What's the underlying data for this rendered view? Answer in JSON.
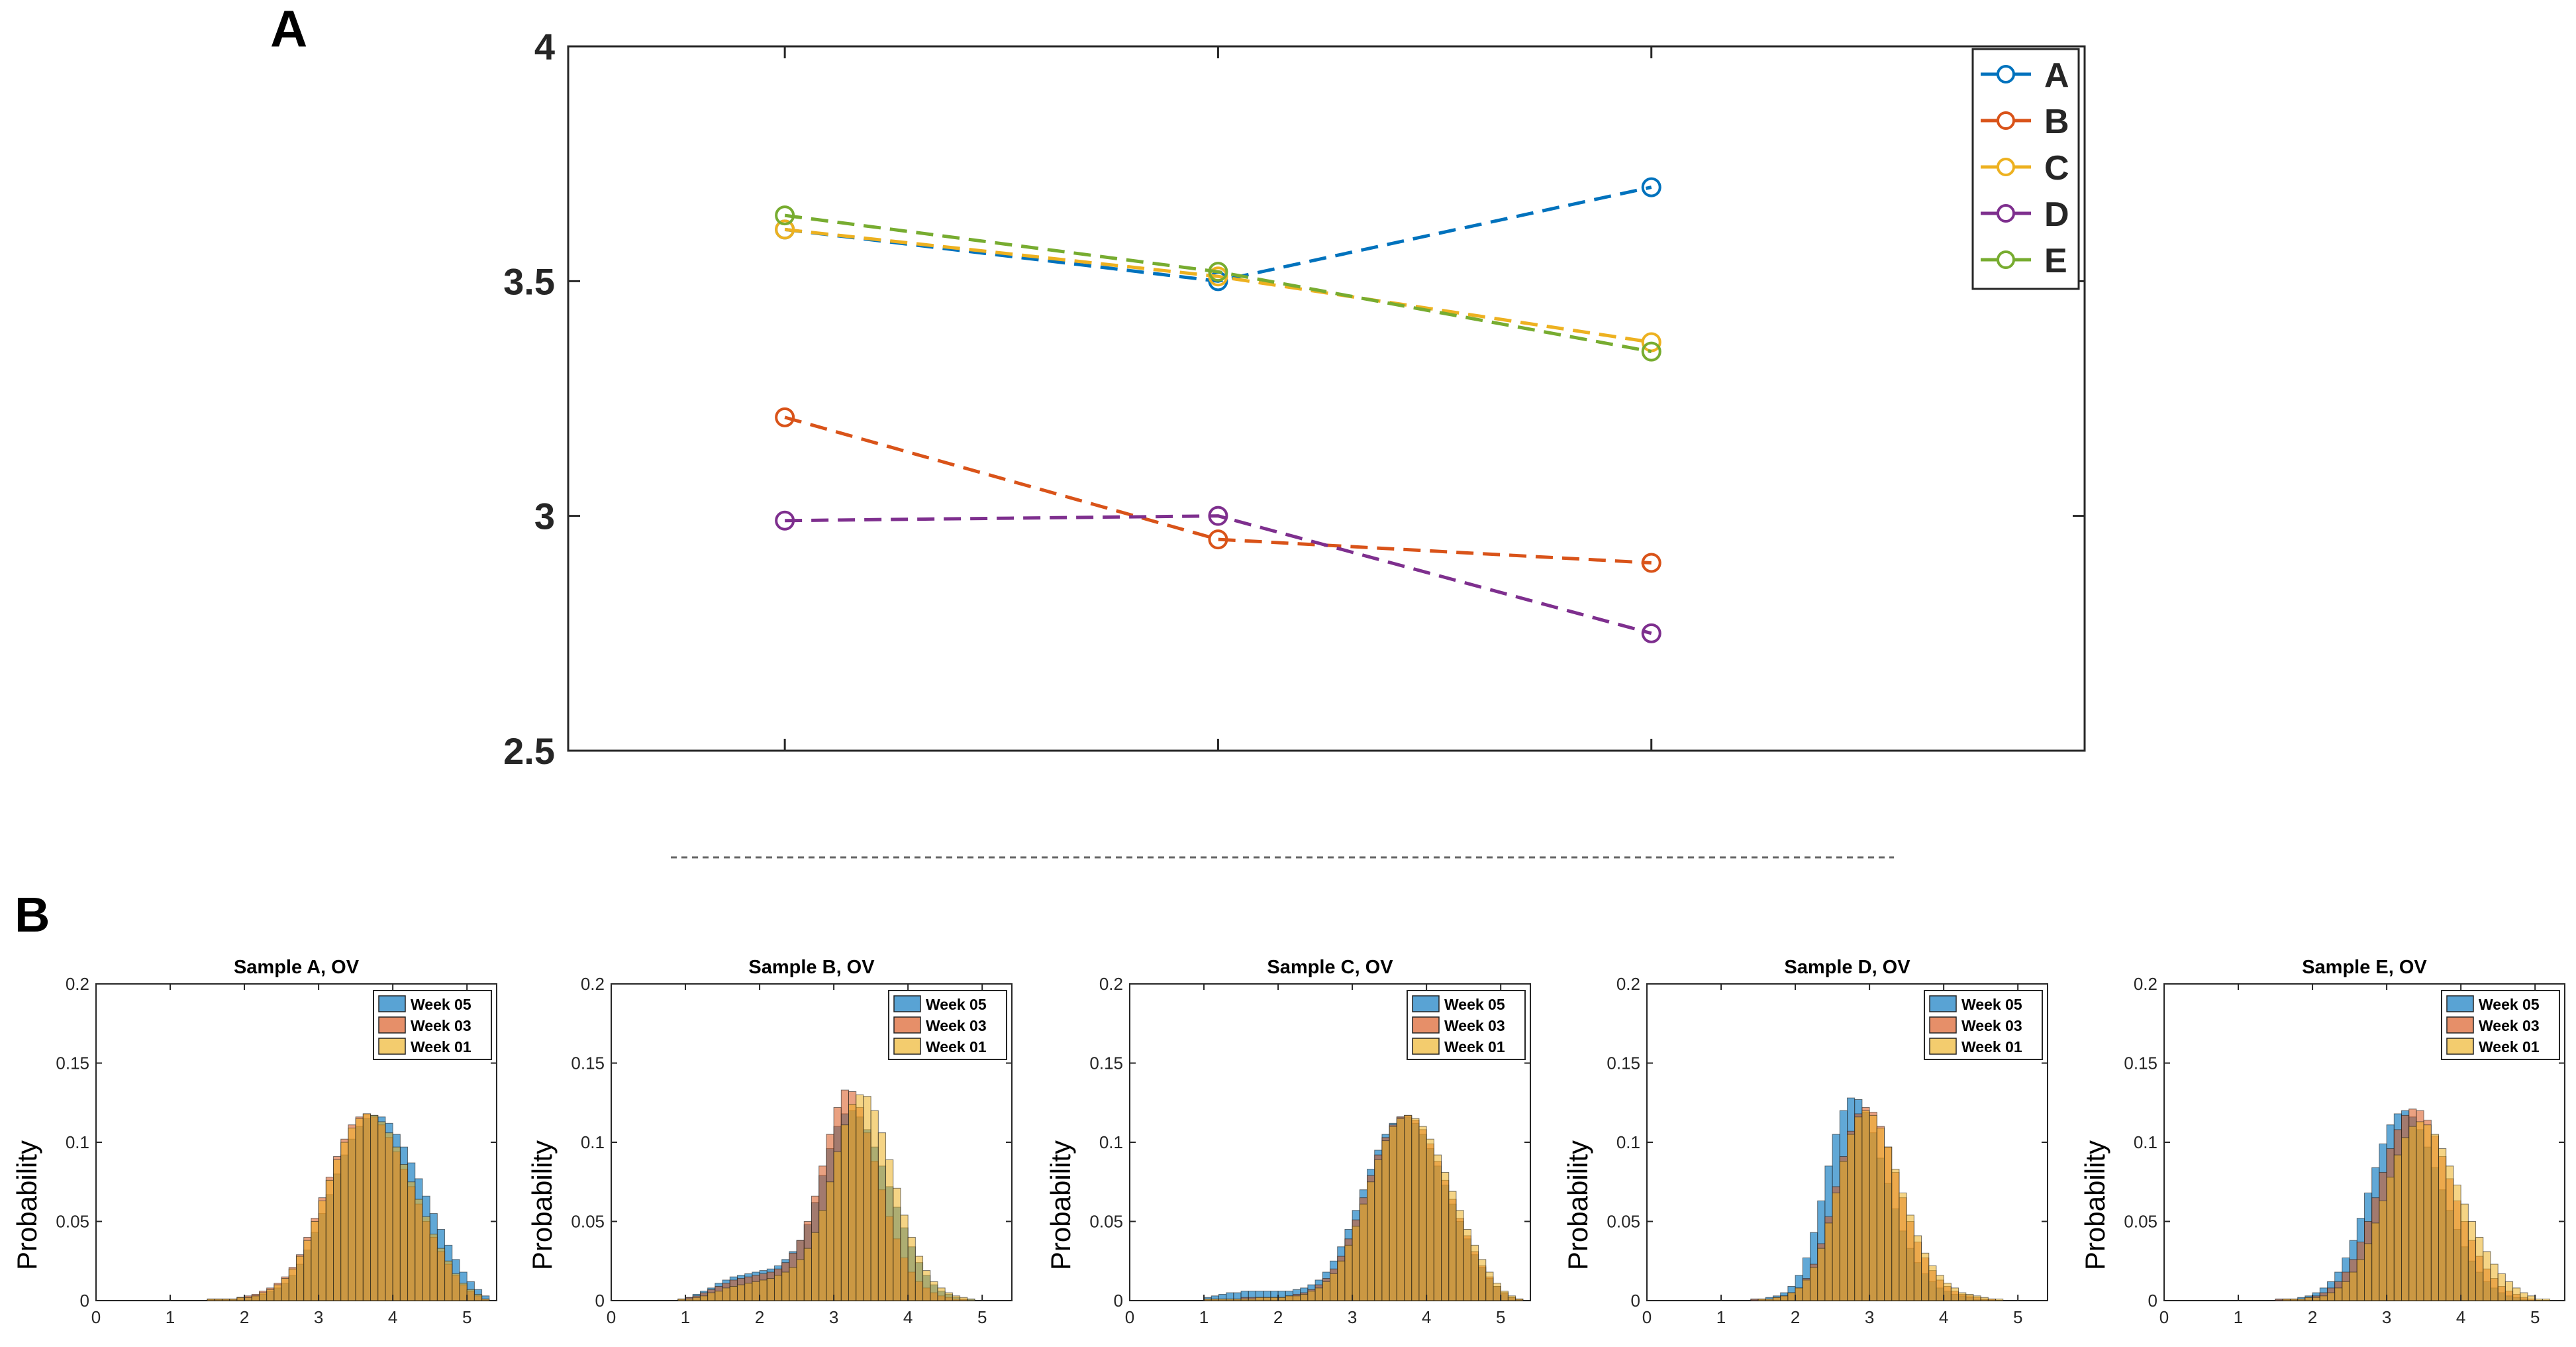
{
  "panels": {
    "a_label": "A",
    "b_label": "B"
  },
  "chart_data": [
    {
      "type": "line",
      "panel": "A",
      "title": "",
      "xlabel": "",
      "ylabel": "",
      "x": [
        1,
        2,
        3
      ],
      "ylim": [
        2.5,
        4
      ],
      "yticks": [
        "2.5",
        "3",
        "3.5",
        "4"
      ],
      "line_style": "dashed",
      "marker": "circle",
      "legend_position": "top-right",
      "series": [
        {
          "name": "A",
          "color": "#0072BD",
          "values": [
            3.61,
            3.5,
            3.7
          ]
        },
        {
          "name": "B",
          "color": "#D95319",
          "values": [
            3.21,
            2.95,
            2.9
          ]
        },
        {
          "name": "C",
          "color": "#EDB120",
          "values": [
            3.61,
            3.51,
            3.37
          ]
        },
        {
          "name": "D",
          "color": "#7E2F8E",
          "values": [
            2.99,
            3.0,
            2.75
          ]
        },
        {
          "name": "E",
          "color": "#77AC30",
          "values": [
            3.64,
            3.52,
            3.35
          ]
        }
      ]
    },
    {
      "type": "histogram",
      "panel": "B",
      "title": "Sample A, OV",
      "ylabel": "Probability",
      "xlim": [
        0,
        5.4
      ],
      "ylim": [
        0,
        0.2
      ],
      "xticks": [
        "0",
        "1",
        "2",
        "3",
        "4",
        "5"
      ],
      "yticks": [
        "0",
        "0.05",
        "0.1",
        "0.15",
        "0.2"
      ],
      "bin_width": 0.1,
      "bin_start": 0.5,
      "series": [
        {
          "name": "Week 05",
          "color": "#0072BD",
          "values": [
            0,
            0,
            0,
            0,
            0,
            0,
            0,
            0,
            0,
            0,
            0.001,
            0.001,
            0.001,
            0.001,
            0.002,
            0.002,
            0.003,
            0.004,
            0.006,
            0.008,
            0.011,
            0.016,
            0.023,
            0.032,
            0.043,
            0.055,
            0.067,
            0.08,
            0.092,
            0.102,
            0.11,
            0.115,
            0.117,
            0.116,
            0.112,
            0.105,
            0.097,
            0.087,
            0.077,
            0.066,
            0.055,
            0.045,
            0.035,
            0.026,
            0.018,
            0.012,
            0.007,
            0.003
          ]
        },
        {
          "name": "Week 03",
          "color": "#D95319",
          "values": [
            0,
            0,
            0,
            0,
            0,
            0,
            0,
            0,
            0,
            0,
            0.001,
            0.001,
            0.001,
            0.001,
            0.002,
            0.003,
            0.004,
            0.006,
            0.008,
            0.011,
            0.015,
            0.021,
            0.029,
            0.04,
            0.052,
            0.065,
            0.078,
            0.091,
            0.102,
            0.111,
            0.116,
            0.118,
            0.116,
            0.111,
            0.103,
            0.094,
            0.083,
            0.072,
            0.061,
            0.05,
            0.04,
            0.031,
            0.023,
            0.016,
            0.01,
            0.006,
            0.003,
            0.001
          ]
        },
        {
          "name": "Week 01",
          "color": "#EDB120",
          "values": [
            0,
            0,
            0,
            0,
            0,
            0,
            0,
            0,
            0,
            0,
            0.001,
            0.001,
            0.001,
            0.001,
            0.002,
            0.002,
            0.003,
            0.005,
            0.007,
            0.01,
            0.014,
            0.02,
            0.028,
            0.038,
            0.05,
            0.063,
            0.076,
            0.089,
            0.1,
            0.109,
            0.115,
            0.118,
            0.117,
            0.113,
            0.106,
            0.097,
            0.086,
            0.075,
            0.064,
            0.053,
            0.042,
            0.033,
            0.025,
            0.017,
            0.011,
            0.007,
            0.004,
            0.001
          ]
        }
      ]
    },
    {
      "type": "histogram",
      "panel": "B",
      "title": "Sample B, OV",
      "ylabel": "Probability",
      "xlim": [
        0,
        5.4
      ],
      "ylim": [
        0,
        0.2
      ],
      "xticks": [
        "0",
        "1",
        "2",
        "3",
        "4",
        "5"
      ],
      "yticks": [
        "0",
        "0.05",
        "0.1",
        "0.15",
        "0.2"
      ],
      "bin_width": 0.1,
      "bin_start": 0.5,
      "series": [
        {
          "name": "Week 05",
          "color": "#0072BD",
          "values": [
            0,
            0,
            0,
            0,
            0.001,
            0.002,
            0.004,
            0.006,
            0.008,
            0.011,
            0.013,
            0.015,
            0.016,
            0.017,
            0.018,
            0.019,
            0.02,
            0.022,
            0.026,
            0.031,
            0.038,
            0.048,
            0.062,
            0.079,
            0.096,
            0.11,
            0.118,
            0.12,
            0.116,
            0.108,
            0.097,
            0.085,
            0.072,
            0.059,
            0.046,
            0.034,
            0.024,
            0.016,
            0.01,
            0.006,
            0.004,
            0.002,
            0.001,
            0.001,
            0,
            0,
            0,
            0
          ]
        },
        {
          "name": "Week 03",
          "color": "#D95319",
          "values": [
            0,
            0,
            0,
            0,
            0.001,
            0.002,
            0.003,
            0.005,
            0.007,
            0.009,
            0.011,
            0.013,
            0.014,
            0.015,
            0.016,
            0.017,
            0.018,
            0.02,
            0.024,
            0.03,
            0.038,
            0.05,
            0.066,
            0.085,
            0.105,
            0.122,
            0.133,
            0.132,
            0.122,
            0.106,
            0.088,
            0.07,
            0.053,
            0.039,
            0.027,
            0.018,
            0.012,
            0.008,
            0.005,
            0.003,
            0.002,
            0.001,
            0.001,
            0,
            0,
            0,
            0,
            0
          ]
        },
        {
          "name": "Week 01",
          "color": "#EDB120",
          "values": [
            0,
            0,
            0,
            0,
            0.001,
            0.001,
            0.002,
            0.003,
            0.005,
            0.006,
            0.008,
            0.009,
            0.01,
            0.011,
            0.012,
            0.013,
            0.014,
            0.016,
            0.018,
            0.021,
            0.026,
            0.033,
            0.043,
            0.057,
            0.075,
            0.094,
            0.111,
            0.124,
            0.13,
            0.129,
            0.12,
            0.106,
            0.089,
            0.071,
            0.054,
            0.04,
            0.028,
            0.019,
            0.012,
            0.008,
            0.005,
            0.003,
            0.002,
            0.001,
            0,
            0,
            0,
            0
          ]
        }
      ]
    },
    {
      "type": "histogram",
      "panel": "B",
      "title": "Sample C, OV",
      "ylabel": "Probability",
      "xlim": [
        0,
        5.4
      ],
      "ylim": [
        0,
        0.2
      ],
      "xticks": [
        "0",
        "1",
        "2",
        "3",
        "4",
        "5"
      ],
      "yticks": [
        "0",
        "0.05",
        "0.1",
        "0.15",
        "0.2"
      ],
      "bin_width": 0.1,
      "bin_start": 0.5,
      "series": [
        {
          "name": "Week 05",
          "color": "#0072BD",
          "values": [
            0,
            0,
            0,
            0,
            0,
            0.002,
            0.003,
            0.004,
            0.005,
            0.005,
            0.006,
            0.006,
            0.006,
            0.006,
            0.006,
            0.006,
            0.006,
            0.007,
            0.008,
            0.01,
            0.013,
            0.018,
            0.025,
            0.034,
            0.045,
            0.057,
            0.07,
            0.083,
            0.095,
            0.105,
            0.112,
            0.116,
            0.116,
            0.112,
            0.105,
            0.096,
            0.085,
            0.073,
            0.061,
            0.05,
            0.039,
            0.029,
            0.021,
            0.014,
            0.009,
            0.005,
            0.002,
            0.001
          ]
        },
        {
          "name": "Week 03",
          "color": "#D95319",
          "values": [
            0,
            0,
            0,
            0,
            0,
            0.001,
            0.001,
            0.001,
            0.001,
            0.001,
            0.002,
            0.002,
            0.002,
            0.002,
            0.002,
            0.002,
            0.003,
            0.004,
            0.005,
            0.007,
            0.01,
            0.014,
            0.02,
            0.028,
            0.039,
            0.051,
            0.065,
            0.079,
            0.092,
            0.103,
            0.111,
            0.116,
            0.117,
            0.114,
            0.108,
            0.099,
            0.088,
            0.076,
            0.064,
            0.052,
            0.041,
            0.031,
            0.022,
            0.015,
            0.009,
            0.005,
            0.002,
            0.001
          ]
        },
        {
          "name": "Week 01",
          "color": "#EDB120",
          "values": [
            0,
            0,
            0,
            0,
            0,
            0.001,
            0.001,
            0.001,
            0.001,
            0.001,
            0.001,
            0.001,
            0.002,
            0.002,
            0.002,
            0.002,
            0.003,
            0.003,
            0.004,
            0.006,
            0.008,
            0.012,
            0.017,
            0.025,
            0.035,
            0.047,
            0.061,
            0.075,
            0.089,
            0.101,
            0.11,
            0.115,
            0.117,
            0.115,
            0.11,
            0.102,
            0.092,
            0.081,
            0.069,
            0.057,
            0.045,
            0.035,
            0.026,
            0.018,
            0.011,
            0.006,
            0.003,
            0.001
          ]
        }
      ]
    },
    {
      "type": "histogram",
      "panel": "B",
      "title": "Sample D, OV",
      "ylabel": "Probability",
      "xlim": [
        0,
        5.4
      ],
      "ylim": [
        0,
        0.2
      ],
      "xticks": [
        "0",
        "1",
        "2",
        "3",
        "4",
        "5"
      ],
      "yticks": [
        "0",
        "0.05",
        "0.1",
        "0.15",
        "0.2"
      ],
      "bin_width": 0.1,
      "bin_start": 0.5,
      "series": [
        {
          "name": "Week 05",
          "color": "#0072BD",
          "values": [
            0,
            0,
            0,
            0,
            0,
            0,
            0,
            0,
            0,
            0.001,
            0.001,
            0.002,
            0.003,
            0.005,
            0.009,
            0.016,
            0.027,
            0.043,
            0.063,
            0.085,
            0.105,
            0.12,
            0.128,
            0.127,
            0.119,
            0.106,
            0.09,
            0.074,
            0.058,
            0.044,
            0.033,
            0.024,
            0.017,
            0.012,
            0.008,
            0.006,
            0.004,
            0.003,
            0.002,
            0.001,
            0.001,
            0,
            0,
            0,
            0,
            0,
            0,
            0
          ]
        },
        {
          "name": "Week 03",
          "color": "#D95319",
          "values": [
            0,
            0,
            0,
            0,
            0,
            0,
            0,
            0,
            0,
            0.001,
            0.001,
            0.001,
            0.002,
            0.003,
            0.005,
            0.008,
            0.014,
            0.023,
            0.036,
            0.053,
            0.072,
            0.091,
            0.107,
            0.118,
            0.122,
            0.119,
            0.11,
            0.097,
            0.081,
            0.065,
            0.05,
            0.037,
            0.027,
            0.019,
            0.013,
            0.009,
            0.006,
            0.004,
            0.003,
            0.002,
            0.001,
            0.001,
            0,
            0,
            0,
            0,
            0,
            0
          ]
        },
        {
          "name": "Week 01",
          "color": "#EDB120",
          "values": [
            0,
            0,
            0,
            0,
            0,
            0,
            0,
            0,
            0,
            0,
            0.001,
            0.001,
            0.002,
            0.003,
            0.005,
            0.008,
            0.013,
            0.021,
            0.033,
            0.049,
            0.068,
            0.088,
            0.105,
            0.116,
            0.12,
            0.117,
            0.109,
            0.097,
            0.083,
            0.068,
            0.054,
            0.041,
            0.03,
            0.022,
            0.016,
            0.011,
            0.008,
            0.005,
            0.004,
            0.003,
            0.002,
            0.001,
            0.001,
            0,
            0,
            0,
            0,
            0
          ]
        }
      ]
    },
    {
      "type": "histogram",
      "panel": "B",
      "title": "Sample E, OV",
      "ylabel": "Probability",
      "xlim": [
        0,
        5.4
      ],
      "ylim": [
        0,
        0.2
      ],
      "xticks": [
        "0",
        "1",
        "2",
        "3",
        "4",
        "5"
      ],
      "yticks": [
        "0",
        "0.05",
        "0.1",
        "0.15",
        "0.2"
      ],
      "bin_width": 0.1,
      "bin_start": 0.5,
      "series": [
        {
          "name": "Week 05",
          "color": "#0072BD",
          "values": [
            0,
            0,
            0,
            0,
            0,
            0,
            0,
            0,
            0,
            0,
            0.001,
            0.001,
            0.001,
            0.002,
            0.003,
            0.005,
            0.008,
            0.012,
            0.018,
            0.027,
            0.038,
            0.052,
            0.068,
            0.084,
            0.099,
            0.111,
            0.118,
            0.12,
            0.116,
            0.108,
            0.097,
            0.084,
            0.07,
            0.057,
            0.045,
            0.034,
            0.025,
            0.018,
            0.012,
            0.008,
            0.005,
            0.003,
            0.002,
            0.001,
            0,
            0,
            0,
            0
          ]
        },
        {
          "name": "Week 03",
          "color": "#D95319",
          "values": [
            0,
            0,
            0,
            0,
            0,
            0,
            0,
            0,
            0,
            0,
            0.001,
            0.001,
            0.001,
            0.001,
            0.002,
            0.003,
            0.005,
            0.008,
            0.012,
            0.018,
            0.026,
            0.037,
            0.05,
            0.065,
            0.081,
            0.096,
            0.108,
            0.117,
            0.121,
            0.12,
            0.114,
            0.104,
            0.091,
            0.077,
            0.063,
            0.05,
            0.038,
            0.028,
            0.02,
            0.014,
            0.009,
            0.006,
            0.004,
            0.002,
            0.001,
            0,
            0,
            0
          ]
        },
        {
          "name": "Week 01",
          "color": "#EDB120",
          "values": [
            0,
            0,
            0,
            0,
            0,
            0,
            0,
            0,
            0,
            0,
            0,
            0.001,
            0.001,
            0.001,
            0.002,
            0.002,
            0.003,
            0.005,
            0.008,
            0.012,
            0.018,
            0.026,
            0.036,
            0.049,
            0.063,
            0.078,
            0.092,
            0.103,
            0.11,
            0.113,
            0.111,
            0.105,
            0.096,
            0.085,
            0.073,
            0.061,
            0.05,
            0.04,
            0.031,
            0.023,
            0.017,
            0.012,
            0.008,
            0.005,
            0.003,
            0.001,
            0.001,
            0
          ]
        }
      ]
    }
  ]
}
